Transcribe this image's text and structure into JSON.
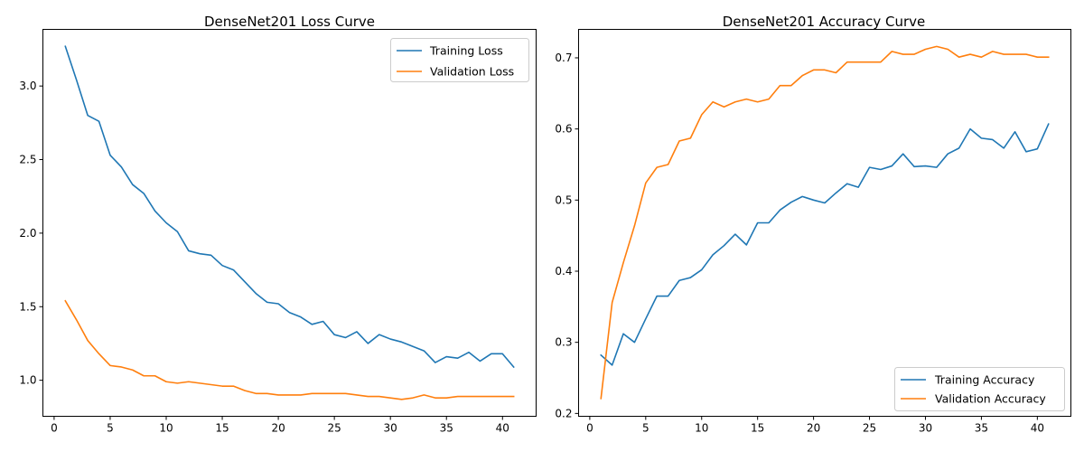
{
  "colors": {
    "blue": "#1f77b4",
    "orange": "#ff7f0e",
    "axis": "#000000",
    "legend_border": "#cccccc"
  },
  "chart_data": [
    {
      "type": "line",
      "title": "DenseNet201 Loss Curve",
      "xlabel": "",
      "ylabel": "",
      "grid": false,
      "legend_position": "upper right",
      "xlim": [
        -1,
        43
      ],
      "ylim": [
        0.755,
        3.385
      ],
      "xticks": [
        0,
        5,
        10,
        15,
        20,
        25,
        30,
        35,
        40
      ],
      "yticks": [
        1.0,
        1.5,
        2.0,
        2.5,
        3.0
      ],
      "ytick_labels": [
        "1.0",
        "1.5",
        "2.0",
        "2.5",
        "3.0"
      ],
      "x": [
        1,
        2,
        3,
        4,
        5,
        6,
        7,
        8,
        9,
        10,
        11,
        12,
        13,
        14,
        15,
        16,
        17,
        18,
        19,
        20,
        21,
        22,
        23,
        24,
        25,
        26,
        27,
        28,
        29,
        30,
        31,
        32,
        33,
        34,
        35,
        36,
        37,
        38,
        39,
        40,
        41
      ],
      "series": [
        {
          "name": "Training Loss",
          "color": "#1f77b4",
          "values": [
            3.27,
            3.04,
            2.8,
            2.76,
            2.53,
            2.45,
            2.33,
            2.27,
            2.15,
            2.07,
            2.01,
            1.88,
            1.86,
            1.85,
            1.78,
            1.75,
            1.67,
            1.59,
            1.53,
            1.52,
            1.46,
            1.43,
            1.38,
            1.4,
            1.31,
            1.29,
            1.33,
            1.25,
            1.31,
            1.28,
            1.26,
            1.23,
            1.2,
            1.12,
            1.16,
            1.15,
            1.19,
            1.13,
            1.18,
            1.18,
            1.09
          ]
        },
        {
          "name": "Validation Loss",
          "color": "#ff7f0e",
          "values": [
            1.54,
            1.41,
            1.27,
            1.18,
            1.1,
            1.09,
            1.07,
            1.03,
            1.03,
            0.99,
            0.98,
            0.99,
            0.98,
            0.97,
            0.96,
            0.96,
            0.93,
            0.91,
            0.91,
            0.9,
            0.9,
            0.9,
            0.91,
            0.91,
            0.91,
            0.91,
            0.9,
            0.89,
            0.89,
            0.88,
            0.87,
            0.88,
            0.9,
            0.88,
            0.88,
            0.89,
            0.89,
            0.89,
            0.89,
            0.89,
            0.89
          ]
        }
      ]
    },
    {
      "type": "line",
      "title": "DenseNet201 Accuracy Curve",
      "xlabel": "",
      "ylabel": "",
      "grid": false,
      "legend_position": "lower right",
      "xlim": [
        -1,
        43
      ],
      "ylim": [
        0.196,
        0.74
      ],
      "xticks": [
        0,
        5,
        10,
        15,
        20,
        25,
        30,
        35,
        40
      ],
      "yticks": [
        0.2,
        0.3,
        0.4,
        0.5,
        0.6,
        0.7
      ],
      "ytick_labels": [
        "0.2",
        "0.3",
        "0.4",
        "0.5",
        "0.6",
        "0.7"
      ],
      "x": [
        1,
        2,
        3,
        4,
        5,
        6,
        7,
        8,
        9,
        10,
        11,
        12,
        13,
        14,
        15,
        16,
        17,
        18,
        19,
        20,
        21,
        22,
        23,
        24,
        25,
        26,
        27,
        28,
        29,
        30,
        31,
        32,
        33,
        34,
        35,
        36,
        37,
        38,
        39,
        40,
        41
      ],
      "series": [
        {
          "name": "Training Accuracy",
          "color": "#1f77b4",
          "values": [
            0.282,
            0.268,
            0.312,
            0.3,
            0.333,
            0.365,
            0.365,
            0.387,
            0.391,
            0.402,
            0.423,
            0.436,
            0.452,
            0.437,
            0.468,
            0.468,
            0.486,
            0.497,
            0.505,
            0.5,
            0.496,
            0.51,
            0.523,
            0.518,
            0.546,
            0.543,
            0.548,
            0.565,
            0.547,
            0.548,
            0.546,
            0.565,
            0.573,
            0.6,
            0.587,
            0.585,
            0.573,
            0.596,
            0.568,
            0.572,
            0.607
          ]
        },
        {
          "name": "Validation Accuracy",
          "color": "#ff7f0e",
          "values": [
            0.221,
            0.356,
            0.412,
            0.464,
            0.524,
            0.546,
            0.55,
            0.583,
            0.587,
            0.62,
            0.638,
            0.631,
            0.638,
            0.642,
            0.638,
            0.642,
            0.661,
            0.661,
            0.675,
            0.683,
            0.683,
            0.679,
            0.694,
            0.694,
            0.694,
            0.694,
            0.709,
            0.705,
            0.705,
            0.712,
            0.716,
            0.712,
            0.701,
            0.705,
            0.701,
            0.709,
            0.705,
            0.705,
            0.705,
            0.701,
            0.701
          ]
        }
      ]
    }
  ]
}
